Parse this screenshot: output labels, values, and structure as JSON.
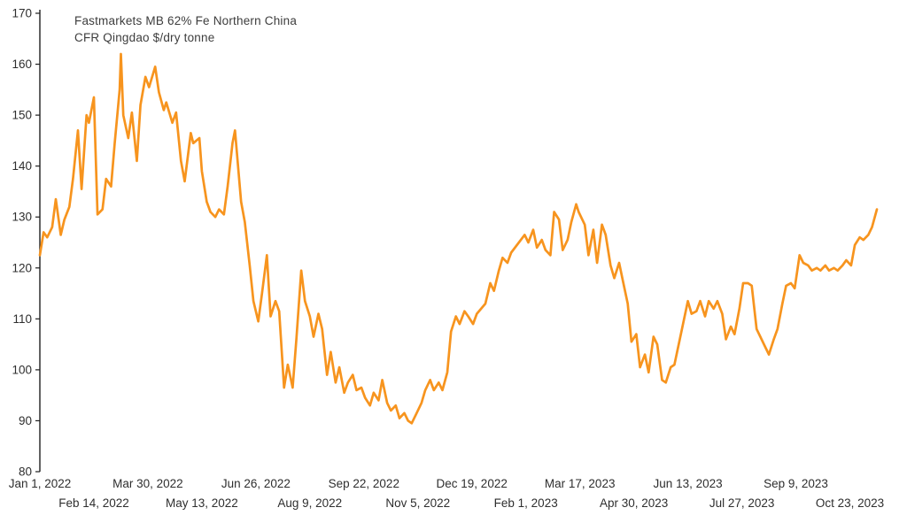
{
  "chart": {
    "title_line1": "Fastmarkets MB 62% Fe Northern China",
    "title_line2": "CFR Qingdao $/dry tonne"
  },
  "chart_data": {
    "type": "line",
    "title": "Fastmarkets MB 62% Fe Northern China CFR Qingdao $/dry tonne",
    "xlabel": "",
    "ylabel": "$/dry tonne",
    "ylim": [
      80,
      170
    ],
    "yticks": [
      80,
      90,
      100,
      110,
      120,
      130,
      140,
      150,
      160,
      170
    ],
    "grid": false,
    "legend_position": "none",
    "line_color": "#F7941E",
    "axis_color": "#1f1f1f",
    "xticks": [
      {
        "label": "Jan 1, 2022",
        "date": "2022-01-01"
      },
      {
        "label": "Feb 14, 2022",
        "date": "2022-02-14"
      },
      {
        "label": "Mar 30, 2022",
        "date": "2022-03-30"
      },
      {
        "label": "May 13, 2022",
        "date": "2022-05-13"
      },
      {
        "label": "Jun 26, 2022",
        "date": "2022-06-26"
      },
      {
        "label": "Aug 9, 2022",
        "date": "2022-08-09"
      },
      {
        "label": "Sep 22, 2022",
        "date": "2022-09-22"
      },
      {
        "label": "Nov 5, 2022",
        "date": "2022-11-05"
      },
      {
        "label": "Dec 19, 2022",
        "date": "2022-12-19"
      },
      {
        "label": "Feb 1, 2023",
        "date": "2023-02-01"
      },
      {
        "label": "Mar 17, 2023",
        "date": "2023-03-17"
      },
      {
        "label": "Apr 30, 2023",
        "date": "2023-04-30"
      },
      {
        "label": "Jun 13, 2023",
        "date": "2023-06-13"
      },
      {
        "label": "Jul 27, 2023",
        "date": "2023-07-27"
      },
      {
        "label": "Sep 9, 2023",
        "date": "2023-09-09"
      },
      {
        "label": "Oct 23, 2023",
        "date": "2023-10-23"
      }
    ],
    "series_name": "Fastmarkets MB 62% Fe Northern China CFR Qingdao",
    "points": [
      [
        "2022-01-01",
        122.5
      ],
      [
        "2022-01-04",
        127
      ],
      [
        "2022-01-07",
        126
      ],
      [
        "2022-01-11",
        128
      ],
      [
        "2022-01-14",
        133.5
      ],
      [
        "2022-01-18",
        126.5
      ],
      [
        "2022-01-21",
        129.5
      ],
      [
        "2022-01-25",
        132
      ],
      [
        "2022-01-28",
        137.5
      ],
      [
        "2022-02-01",
        147
      ],
      [
        "2022-02-04",
        135.5
      ],
      [
        "2022-02-08",
        150
      ],
      [
        "2022-02-10",
        148.5
      ],
      [
        "2022-02-14",
        153.5
      ],
      [
        "2022-02-17",
        130.5
      ],
      [
        "2022-02-21",
        131.5
      ],
      [
        "2022-02-24",
        137.5
      ],
      [
        "2022-02-28",
        136
      ],
      [
        "2022-03-03",
        144.5
      ],
      [
        "2022-03-07",
        155
      ],
      [
        "2022-03-08",
        162
      ],
      [
        "2022-03-10",
        150
      ],
      [
        "2022-03-14",
        145.5
      ],
      [
        "2022-03-17",
        150.5
      ],
      [
        "2022-03-21",
        141
      ],
      [
        "2022-03-24",
        152
      ],
      [
        "2022-03-28",
        157.5
      ],
      [
        "2022-03-31",
        155.5
      ],
      [
        "2022-04-05",
        159.5
      ],
      [
        "2022-04-08",
        154.5
      ],
      [
        "2022-04-12",
        151
      ],
      [
        "2022-04-14",
        152.5
      ],
      [
        "2022-04-19",
        148.5
      ],
      [
        "2022-04-22",
        150.5
      ],
      [
        "2022-04-26",
        141
      ],
      [
        "2022-04-29",
        137
      ],
      [
        "2022-05-04",
        146.5
      ],
      [
        "2022-05-06",
        144.5
      ],
      [
        "2022-05-11",
        145.5
      ],
      [
        "2022-05-13",
        139
      ],
      [
        "2022-05-17",
        133
      ],
      [
        "2022-05-20",
        131
      ],
      [
        "2022-05-24",
        130
      ],
      [
        "2022-05-27",
        131.5
      ],
      [
        "2022-05-31",
        130.5
      ],
      [
        "2022-06-03",
        136
      ],
      [
        "2022-06-07",
        144.5
      ],
      [
        "2022-06-09",
        147
      ],
      [
        "2022-06-14",
        133
      ],
      [
        "2022-06-17",
        129
      ],
      [
        "2022-06-21",
        120.5
      ],
      [
        "2022-06-24",
        113.5
      ],
      [
        "2022-06-28",
        109.5
      ],
      [
        "2022-07-01",
        115
      ],
      [
        "2022-07-05",
        122.5
      ],
      [
        "2022-07-08",
        110.5
      ],
      [
        "2022-07-12",
        113.5
      ],
      [
        "2022-07-15",
        111.5
      ],
      [
        "2022-07-19",
        96.5
      ],
      [
        "2022-07-22",
        101
      ],
      [
        "2022-07-26",
        96.5
      ],
      [
        "2022-07-29",
        106
      ],
      [
        "2022-08-02",
        119.5
      ],
      [
        "2022-08-05",
        113.5
      ],
      [
        "2022-08-09",
        110.5
      ],
      [
        "2022-08-12",
        106.5
      ],
      [
        "2022-08-16",
        111
      ],
      [
        "2022-08-19",
        108
      ],
      [
        "2022-08-23",
        99
      ],
      [
        "2022-08-26",
        103.5
      ],
      [
        "2022-08-30",
        97.5
      ],
      [
        "2022-09-02",
        100.5
      ],
      [
        "2022-09-06",
        95.5
      ],
      [
        "2022-09-09",
        97.5
      ],
      [
        "2022-09-13",
        99
      ],
      [
        "2022-09-16",
        96
      ],
      [
        "2022-09-20",
        96.5
      ],
      [
        "2022-09-23",
        94.5
      ],
      [
        "2022-09-27",
        93
      ],
      [
        "2022-09-30",
        95.5
      ],
      [
        "2022-10-04",
        94
      ],
      [
        "2022-10-07",
        98
      ],
      [
        "2022-10-11",
        93.5
      ],
      [
        "2022-10-14",
        92
      ],
      [
        "2022-10-18",
        93
      ],
      [
        "2022-10-21",
        90.5
      ],
      [
        "2022-10-25",
        91.5
      ],
      [
        "2022-10-28",
        90
      ],
      [
        "2022-10-31",
        89.5
      ],
      [
        "2022-11-04",
        91.5
      ],
      [
        "2022-11-08",
        93.5
      ],
      [
        "2022-11-11",
        96
      ],
      [
        "2022-11-15",
        98
      ],
      [
        "2022-11-18",
        96
      ],
      [
        "2022-11-22",
        97.5
      ],
      [
        "2022-11-25",
        96
      ],
      [
        "2022-11-29",
        99.5
      ],
      [
        "2022-12-02",
        107.5
      ],
      [
        "2022-12-06",
        110.5
      ],
      [
        "2022-12-09",
        109
      ],
      [
        "2022-12-13",
        111.5
      ],
      [
        "2022-12-16",
        110.5
      ],
      [
        "2022-12-20",
        109
      ],
      [
        "2022-12-23",
        111
      ],
      [
        "2022-12-30",
        113
      ],
      [
        "2023-01-03",
        117
      ],
      [
        "2023-01-06",
        115.5
      ],
      [
        "2023-01-10",
        119.5
      ],
      [
        "2023-01-13",
        122
      ],
      [
        "2023-01-17",
        121
      ],
      [
        "2023-01-20",
        123
      ],
      [
        "2023-01-31",
        126.5
      ],
      [
        "2023-02-03",
        125
      ],
      [
        "2023-02-07",
        127.5
      ],
      [
        "2023-02-10",
        124
      ],
      [
        "2023-02-14",
        125.5
      ],
      [
        "2023-02-17",
        123.5
      ],
      [
        "2023-02-21",
        122.5
      ],
      [
        "2023-02-24",
        131
      ],
      [
        "2023-02-28",
        129.5
      ],
      [
        "2023-03-03",
        123.5
      ],
      [
        "2023-03-07",
        125.5
      ],
      [
        "2023-03-10",
        129
      ],
      [
        "2023-03-14",
        132.5
      ],
      [
        "2023-03-16",
        131
      ],
      [
        "2023-03-21",
        128.5
      ],
      [
        "2023-03-24",
        122.5
      ],
      [
        "2023-03-28",
        127.5
      ],
      [
        "2023-03-31",
        121
      ],
      [
        "2023-04-04",
        128.5
      ],
      [
        "2023-04-07",
        126.5
      ],
      [
        "2023-04-11",
        120.5
      ],
      [
        "2023-04-14",
        118
      ],
      [
        "2023-04-18",
        121
      ],
      [
        "2023-04-21",
        117.5
      ],
      [
        "2023-04-25",
        113
      ],
      [
        "2023-04-28",
        105.5
      ],
      [
        "2023-05-02",
        107
      ],
      [
        "2023-05-05",
        100.5
      ],
      [
        "2023-05-09",
        103
      ],
      [
        "2023-05-12",
        99.5
      ],
      [
        "2023-05-16",
        106.5
      ],
      [
        "2023-05-19",
        105
      ],
      [
        "2023-05-23",
        98
      ],
      [
        "2023-05-26",
        97.5
      ],
      [
        "2023-05-30",
        100.5
      ],
      [
        "2023-06-02",
        101
      ],
      [
        "2023-06-06",
        105.5
      ],
      [
        "2023-06-13",
        113.5
      ],
      [
        "2023-06-16",
        111
      ],
      [
        "2023-06-20",
        111.5
      ],
      [
        "2023-06-23",
        113.5
      ],
      [
        "2023-06-27",
        110.5
      ],
      [
        "2023-06-30",
        113.5
      ],
      [
        "2023-07-04",
        112
      ],
      [
        "2023-07-07",
        113.5
      ],
      [
        "2023-07-11",
        111
      ],
      [
        "2023-07-14",
        106
      ],
      [
        "2023-07-18",
        108.5
      ],
      [
        "2023-07-21",
        107
      ],
      [
        "2023-07-25",
        112
      ],
      [
        "2023-07-28",
        117
      ],
      [
        "2023-08-01",
        117
      ],
      [
        "2023-08-04",
        116.5
      ],
      [
        "2023-08-08",
        108
      ],
      [
        "2023-08-11",
        106.5
      ],
      [
        "2023-08-15",
        104.5
      ],
      [
        "2023-08-18",
        103
      ],
      [
        "2023-08-22",
        106
      ],
      [
        "2023-08-25",
        108
      ],
      [
        "2023-08-29",
        113
      ],
      [
        "2023-09-01",
        116.5
      ],
      [
        "2023-09-05",
        117
      ],
      [
        "2023-09-08",
        116
      ],
      [
        "2023-09-12",
        122.5
      ],
      [
        "2023-09-15",
        121
      ],
      [
        "2023-09-19",
        120.5
      ],
      [
        "2023-09-22",
        119.5
      ],
      [
        "2023-09-26",
        120
      ],
      [
        "2023-09-29",
        119.5
      ],
      [
        "2023-10-03",
        120.5
      ],
      [
        "2023-10-06",
        119.5
      ],
      [
        "2023-10-10",
        120
      ],
      [
        "2023-10-13",
        119.5
      ],
      [
        "2023-10-17",
        120.5
      ],
      [
        "2023-10-20",
        121.5
      ],
      [
        "2023-10-24",
        120.5
      ],
      [
        "2023-10-27",
        124.5
      ],
      [
        "2023-10-31",
        126
      ],
      [
        "2023-11-03",
        125.5
      ],
      [
        "2023-11-07",
        126.5
      ],
      [
        "2023-11-10",
        128
      ],
      [
        "2023-11-14",
        131.5
      ]
    ]
  }
}
